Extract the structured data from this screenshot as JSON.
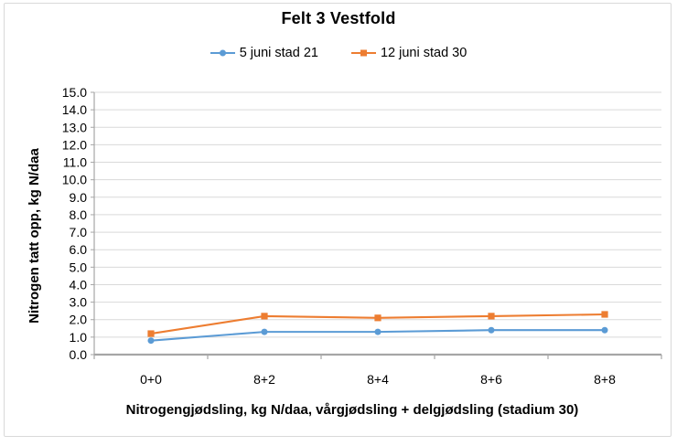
{
  "chart_data": {
    "type": "line",
    "title": "Felt 3 Vestfold",
    "categories": [
      "0+0",
      "8+2",
      "8+4",
      "8+6",
      "8+8"
    ],
    "series": [
      {
        "name": "5 juni stad 21",
        "color": "#5B9BD5",
        "marker": "circle",
        "values": [
          0.8,
          1.3,
          1.3,
          1.4,
          1.4
        ]
      },
      {
        "name": "12 juni stad 30",
        "color": "#ED7D31",
        "marker": "square",
        "values": [
          1.2,
          2.2,
          2.1,
          2.2,
          2.3
        ]
      }
    ],
    "xlabel": "Nitrogengjødsling, kg N/daa, vårgjødsling + delgjødsling (stadium 30)",
    "ylabel": "Nitrogen tatt opp, kg N/daa",
    "ylim": [
      0,
      15
    ],
    "ytick_step": 1.0,
    "ytick_decimals": 1,
    "grid": "horizontal",
    "legend_position": "top",
    "colors": {
      "gridline": "#D9D9D9",
      "axis_line": "#A6A6A6",
      "text": "#000000",
      "frame_border": "#D9D9D9",
      "background": "#FFFFFF"
    }
  }
}
